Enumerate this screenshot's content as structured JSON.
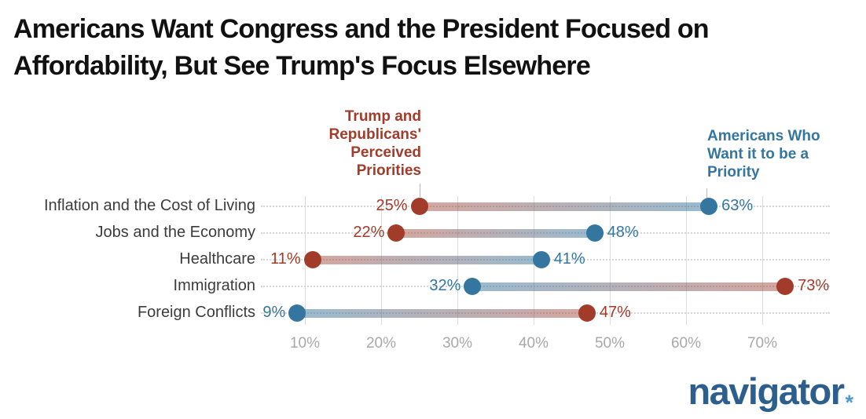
{
  "title": {
    "line1": "Americans Want Congress and the President Focused on",
    "line2": "Affordability, But See Trump's Focus Elsewhere"
  },
  "legend": {
    "red_label": "Trump and\nRepublicans'\nPerceived\nPriorities",
    "blue_label": "Americans Who\nWant it to be a\nPriority"
  },
  "colors": {
    "red": "#a23b2a",
    "blue": "#34769f",
    "bar_red_end": "rgba(162,59,42,0.45)",
    "bar_blue_end": "rgba(52,118,159,0.5)",
    "vertical_grid": "#dcdcdc",
    "row_dotted_grid": "#d6d6d6",
    "axis_text": "#a8a8a8",
    "category_text": "#3c3c3c",
    "logo_navy": "#2d5f8e",
    "logo_star": "#4e9ad2"
  },
  "chart_data": {
    "type": "dumbbell",
    "title": "Americans Want Congress and the President Focused on Affordability, But See Trump's Focus Elsewhere",
    "categories": [
      "Inflation and the Cost of Living",
      "Jobs and the Economy",
      "Healthcare",
      "Immigration",
      "Foreign Conflicts"
    ],
    "series": [
      {
        "name": "Trump and Republicans' Perceived Priorities",
        "color": "#a23b2a",
        "values": [
          25,
          22,
          11,
          73,
          47
        ]
      },
      {
        "name": "Americans Who Want it to be a Priority",
        "color": "#34769f",
        "values": [
          63,
          48,
          41,
          32,
          9
        ]
      }
    ],
    "value_suffix": "%",
    "x_ticks": [
      10,
      20,
      30,
      40,
      50,
      60,
      70
    ],
    "x_tick_labels": [
      "10%",
      "20%",
      "30%",
      "40%",
      "50%",
      "60%",
      "70%"
    ],
    "xlim": [
      0,
      80
    ],
    "grid": "vertical solid lines at ticks, horizontal dotted lines per category",
    "legend_position": "series labels above chart: red right-aligned over 25% dot, blue left-aligned over 63% dot",
    "label_rule": "smaller value labeled left of its dot, larger value labeled right of its dot, colored per series"
  },
  "logo": {
    "text": "navigator",
    "mark": "*"
  }
}
